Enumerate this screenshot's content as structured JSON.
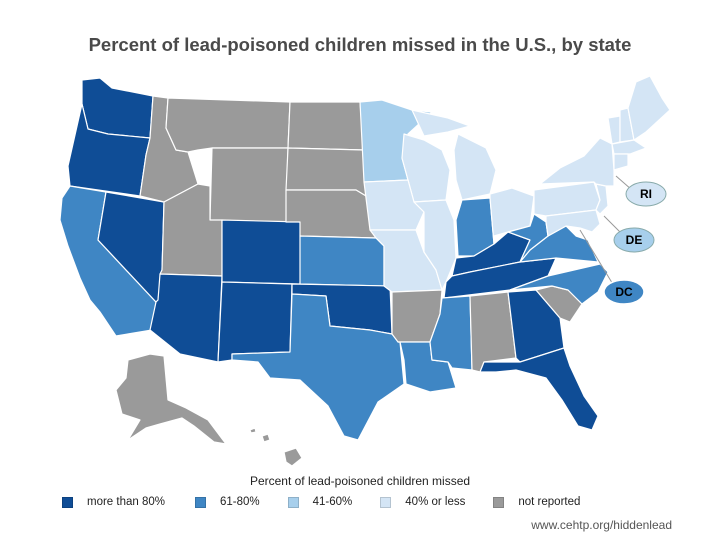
{
  "title": "Percent of lead-poisoned children missed in the U.S., by state",
  "colors": {
    "more_than_80": "#0f4d96",
    "61_80": "#3f86c4",
    "41_60": "#a7cfec",
    "40_or_less": "#d4e5f5",
    "not_reported": "#9a9a9a",
    "background": "#ffffff"
  },
  "legend": {
    "title": "Percent of lead-poisoned children missed",
    "items": [
      {
        "key": "more_than_80",
        "label": "more than 80%"
      },
      {
        "key": "61_80",
        "label": "61-80%"
      },
      {
        "key": "41_60",
        "label": "41-60%"
      },
      {
        "key": "40_or_less",
        "label": "40% or less"
      },
      {
        "key": "not_reported",
        "label": "not reported"
      }
    ]
  },
  "callouts": [
    {
      "label": "RI",
      "category": "40_or_less"
    },
    {
      "label": "DE",
      "category": "41_60"
    },
    {
      "label": "DC",
      "category": "61_80"
    }
  ],
  "states": {
    "WA": "more_than_80",
    "OR": "more_than_80",
    "NV": "more_than_80",
    "AZ": "more_than_80",
    "NM": "more_than_80",
    "CO": "more_than_80",
    "OK": "more_than_80",
    "KY": "more_than_80",
    "TN": "more_than_80",
    "GA": "more_than_80",
    "FL": "more_than_80",
    "CA": "61_80",
    "TX": "61_80",
    "KS": "61_80",
    "LA": "61_80",
    "MS": "61_80",
    "IN": "61_80",
    "WV": "61_80",
    "VA": "61_80",
    "NC": "61_80",
    "MN": "41_60",
    "WI": "40_or_less",
    "IA": "40_or_less",
    "IL": "40_or_less",
    "MO": "40_or_less",
    "MI": "40_or_less",
    "OH": "40_or_less",
    "PA": "40_or_less",
    "NY": "40_or_less",
    "NJ": "40_or_less",
    "MD": "40_or_less",
    "ME": "40_or_less",
    "VT": "40_or_less",
    "NH": "40_or_less",
    "MA": "40_or_less",
    "CT": "40_or_less",
    "ID": "not_reported",
    "MT": "not_reported",
    "WY": "not_reported",
    "UT": "not_reported",
    "ND": "not_reported",
    "SD": "not_reported",
    "NE": "not_reported",
    "AR": "not_reported",
    "AL": "not_reported",
    "SC": "not_reported",
    "AK": "not_reported",
    "HI": "not_reported"
  },
  "source": "www.cehtp.org/hiddenlead"
}
